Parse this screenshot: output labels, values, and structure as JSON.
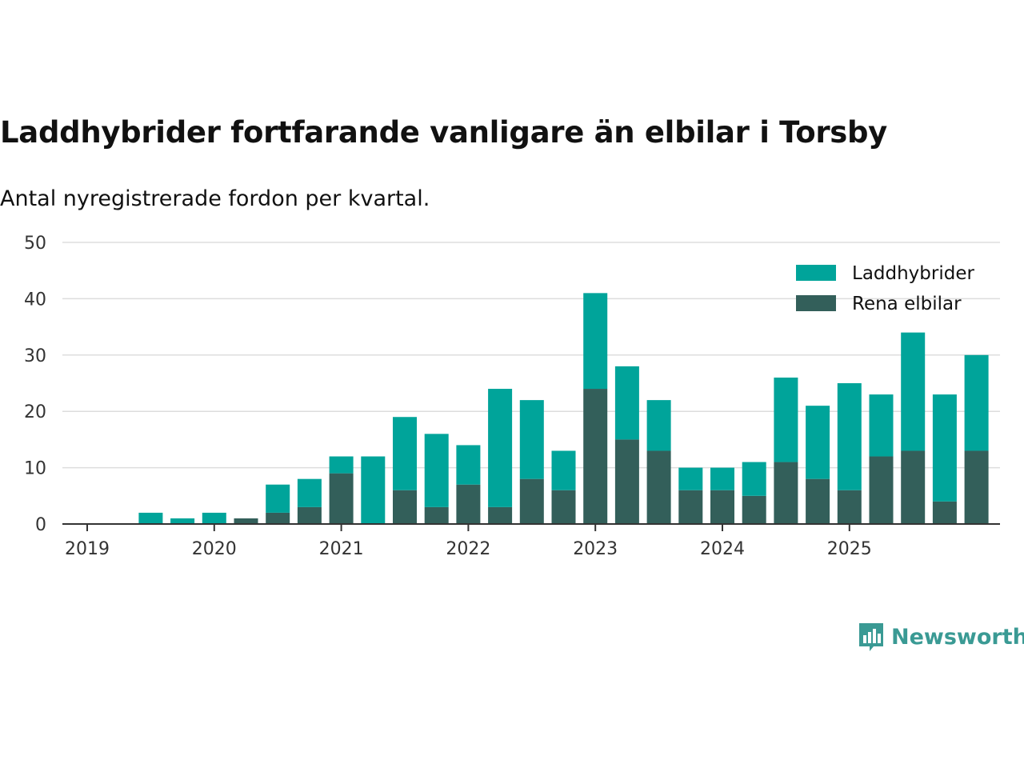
{
  "title": "Laddhybrider fortfarande vanligare än elbilar i Torsby",
  "subtitle": "Antal nyregistrerade fordon per kvartal.",
  "brand": "Newsworthy",
  "colors": {
    "laddhybrider": "#00a49a",
    "rena_elbilar": "#335f5a",
    "grid": "#dddddd",
    "axis": "#333333",
    "text": "#111111"
  },
  "chart_data": {
    "type": "bar",
    "stacked": true,
    "title": "Laddhybrider fortfarande vanligare än elbilar i Torsby",
    "subtitle": "Antal nyregistrerade fordon per kvartal.",
    "xlabel": "",
    "ylabel": "",
    "ylim": [
      0,
      50
    ],
    "yticks": [
      0,
      10,
      20,
      30,
      40,
      50
    ],
    "xticks": [
      "2019",
      "2020",
      "2021",
      "2022",
      "2023",
      "2024",
      "2025"
    ],
    "categories": [
      "2019 Q1",
      "2019 Q2",
      "2019 Q3",
      "2019 Q4",
      "2020 Q1",
      "2020 Q2",
      "2020 Q3",
      "2020 Q4",
      "2021 Q1",
      "2021 Q2",
      "2021 Q3",
      "2021 Q4",
      "2022 Q1",
      "2022 Q2",
      "2022 Q3",
      "2022 Q4",
      "2023 Q1",
      "2023 Q2",
      "2023 Q3",
      "2023 Q4",
      "2024 Q1",
      "2024 Q2",
      "2024 Q3",
      "2024 Q4",
      "2025 Q1",
      "2025 Q2",
      "2025 Q3",
      "2025 Q4"
    ],
    "legend_position": "top-right",
    "series": [
      {
        "name": "Rena elbilar",
        "color": "#335f5a",
        "values": [
          0,
          0,
          0,
          0,
          1,
          2,
          3,
          9,
          0,
          6,
          3,
          7,
          3,
          8,
          6,
          24,
          15,
          13,
          6,
          6,
          5,
          11,
          8,
          6,
          12,
          13,
          4,
          13
        ]
      },
      {
        "name": "Laddhybrider",
        "color": "#00a49a",
        "values": [
          0,
          2,
          1,
          2,
          0,
          5,
          5,
          3,
          12,
          13,
          13,
          7,
          21,
          14,
          7,
          17,
          13,
          9,
          4,
          4,
          6,
          15,
          13,
          19,
          11,
          21,
          19,
          17
        ]
      }
    ],
    "legend": [
      "Laddhybrider",
      "Rena elbilar"
    ]
  }
}
